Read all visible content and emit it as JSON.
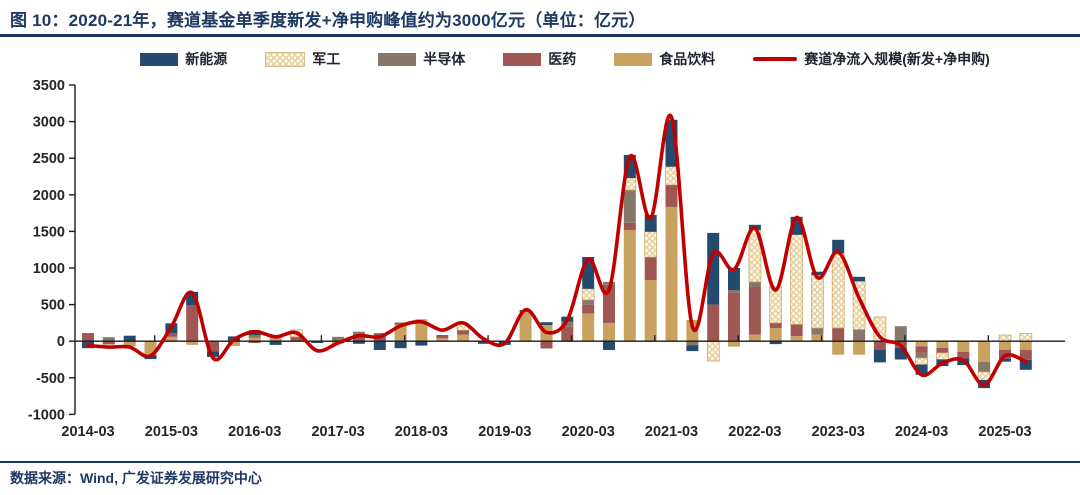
{
  "title": "图 10：2020-21年，赛道基金单季度新发+净申购峰值约为3000亿元（单位：亿元）",
  "footer": "数据来源：Wind, 广发证券发展研究中心",
  "colors": {
    "title_navy": "#1F3864",
    "rule_navy": "#17375E",
    "new_energy_blue": "#254A6F",
    "military_tan_bg": "#E8D4A4",
    "semiconductor_gray": "#87766A",
    "pharma_red": "#9E5752",
    "food_beverage_tan": "#C9A25F",
    "net_inflow_line_red": "#C00000",
    "axis_black": "#1A1A1A"
  },
  "chart_data": {
    "type": "bar",
    "subtype": "stacked-bars-with-line",
    "title": "图 10：2020-21年，赛道基金单季度新发+净申购峰值约为3000亿元（单位：亿元）",
    "unit": "亿元",
    "ylim": [
      -1000,
      3500
    ],
    "y_ticks": [
      3500,
      3000,
      2500,
      2000,
      1500,
      1000,
      500,
      0,
      -500,
      -1000
    ],
    "x_tick_labels": [
      "2014-03",
      "2015-03",
      "2016-03",
      "2017-03",
      "2018-03",
      "2019-03",
      "2020-03",
      "2021-03",
      "2022-03",
      "2023-03",
      "2024-03",
      "2025-03"
    ],
    "grid": false,
    "legend_position": "top",
    "categories": [
      "2014-03",
      "2014-06",
      "2014-09",
      "2014-12",
      "2015-03",
      "2015-06",
      "2015-09",
      "2015-12",
      "2016-03",
      "2016-06",
      "2016-09",
      "2016-12",
      "2017-03",
      "2017-06",
      "2017-09",
      "2017-12",
      "2018-03",
      "2018-06",
      "2018-09",
      "2018-12",
      "2019-03",
      "2019-06",
      "2019-09",
      "2019-12",
      "2020-03",
      "2020-06",
      "2020-09",
      "2020-12",
      "2021-03",
      "2021-06",
      "2021-09",
      "2021-12",
      "2022-03",
      "2022-06",
      "2022-09",
      "2022-12",
      "2023-03",
      "2023-06",
      "2023-09",
      "2023-12",
      "2024-03",
      "2024-06",
      "2024-09",
      "2024-12",
      "2025-03",
      "2025-06"
    ],
    "series": [
      {
        "name": "食品饮料",
        "slug": "food-beverage",
        "color": "#C9A25F",
        "values": [
          0,
          0,
          -70,
          -190,
          60,
          -50,
          0,
          -65,
          45,
          70,
          0,
          0,
          -30,
          0,
          0,
          225,
          300,
          40,
          90,
          0,
          0,
          400,
          220,
          0,
          380,
          250,
          1520,
          835,
          1835,
          290,
          0,
          -75,
          90,
          180,
          70,
          90,
          -185,
          -185,
          0,
          0,
          -70,
          -90,
          -145,
          -280,
          -120,
          -120
        ]
      },
      {
        "name": "医药",
        "slug": "pharma",
        "color": "#9E5752",
        "values": [
          110,
          -45,
          0,
          0,
          50,
          495,
          -140,
          0,
          -25,
          0,
          60,
          0,
          0,
          60,
          110,
          30,
          0,
          45,
          60,
          0,
          0,
          0,
          -100,
          195,
          115,
          520,
          95,
          315,
          300,
          0,
          500,
          660,
          650,
          70,
          160,
          0,
          180,
          0,
          -115,
          -90,
          -90,
          -70,
          -90,
          0,
          -115,
          -135
        ]
      },
      {
        "name": "半导体",
        "slug": "semiconductor",
        "color": "#87766A",
        "values": [
          0,
          55,
          0,
          0,
          0,
          0,
          0,
          0,
          35,
          0,
          0,
          0,
          60,
          70,
          0,
          0,
          0,
          0,
          0,
          0,
          0,
          0,
          0,
          70,
          70,
          40,
          450,
          0,
          0,
          -55,
          0,
          40,
          70,
          0,
          0,
          90,
          0,
          160,
          0,
          205,
          -70,
          0,
          0,
          -140,
          0,
          0
        ]
      },
      {
        "name": "军工",
        "slug": "military",
        "pattern": "white-dots",
        "color": "#E8D4A4",
        "values": [
          0,
          0,
          0,
          0,
          0,
          0,
          0,
          0,
          0,
          0,
          95,
          0,
          0,
          0,
          0,
          0,
          0,
          0,
          80,
          0,
          0,
          0,
          0,
          0,
          150,
          0,
          165,
          345,
          250,
          0,
          -270,
          0,
          710,
          495,
          1225,
          725,
          1025,
          660,
          330,
          0,
          -90,
          -90,
          0,
          -110,
          85,
          105
        ]
      },
      {
        "name": "新能源",
        "slug": "new-energy",
        "color": "#254A6F",
        "values": [
          -95,
          0,
          75,
          -55,
          135,
          180,
          -75,
          65,
          70,
          -50,
          0,
          -25,
          0,
          -35,
          -120,
          -95,
          -60,
          0,
          0,
          -35,
          -50,
          25,
          40,
          70,
          435,
          -120,
          315,
          230,
          640,
          -80,
          980,
          300,
          70,
          -40,
          245,
          45,
          180,
          60,
          -175,
          -160,
          -140,
          -90,
          -90,
          -110,
          -45,
          -135
        ]
      }
    ],
    "line": {
      "name": "赛道净流入规模(新发+净申购)",
      "slug": "net-inflow-line",
      "color": "#C00000",
      "values": [
        -60,
        -80,
        -80,
        -200,
        200,
        660,
        -230,
        20,
        130,
        60,
        115,
        -130,
        -25,
        75,
        60,
        210,
        265,
        150,
        250,
        30,
        -30,
        430,
        120,
        290,
        1120,
        700,
        2520,
        1680,
        3060,
        200,
        1200,
        980,
        1545,
        700,
        1690,
        870,
        1220,
        590,
        60,
        -60,
        -460,
        -300,
        -260,
        -600,
        -200,
        -280
      ]
    }
  }
}
